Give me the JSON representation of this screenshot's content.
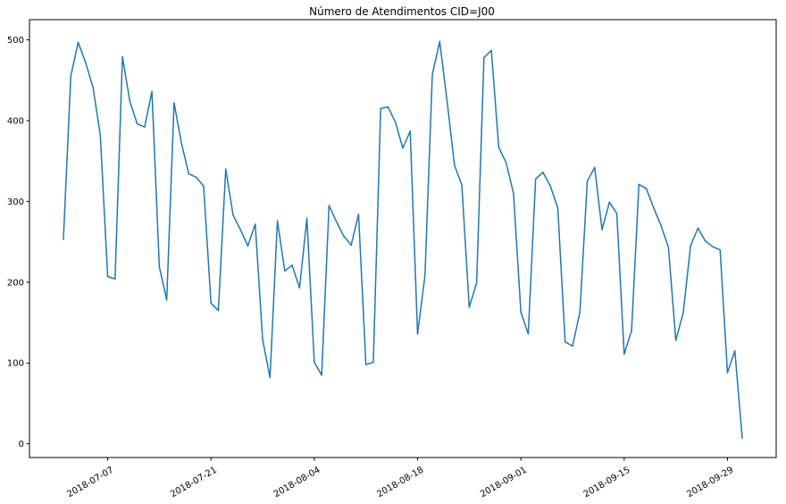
{
  "chart_data": {
    "type": "line",
    "title": "Número de Atendimentos CID=J00",
    "xlabel": "",
    "ylabel": "",
    "x_start": "2018-07-01",
    "x_step_days": 1,
    "xlim_days": [
      -4.6,
      96.6
    ],
    "ylim": [
      -17,
      525
    ],
    "yticks": [
      0,
      100,
      200,
      300,
      400,
      500
    ],
    "ytick_labels": [
      "0",
      "100",
      "200",
      "300",
      "400",
      "500"
    ],
    "xticks_days": [
      6,
      20,
      34,
      48,
      62,
      76,
      90
    ],
    "xtick_labels": [
      "2018-07-07",
      "2018-07-21",
      "2018-08-04",
      "2018-08-18",
      "2018-09-01",
      "2018-09-15",
      "2018-09-29"
    ],
    "grid": false,
    "series": [
      {
        "name": "Número de Atendimentos",
        "color": "#1f77b4",
        "values": [
          253,
          455,
          497,
          472,
          442,
          382,
          207,
          204,
          479,
          424,
          396,
          392,
          436,
          219,
          178,
          422,
          372,
          334,
          330,
          319,
          174,
          165,
          340,
          283,
          265,
          245,
          272,
          129,
          82,
          276,
          214,
          221,
          193,
          279,
          101,
          85,
          295,
          275,
          257,
          246,
          284,
          98,
          101,
          415,
          417,
          398,
          366,
          387,
          136,
          208,
          457,
          498,
          424,
          345,
          320,
          169,
          199,
          478,
          487,
          367,
          348,
          310,
          163,
          136,
          328,
          336,
          319,
          292,
          126,
          121,
          163,
          325,
          342,
          265,
          299,
          285,
          111,
          140,
          321,
          316,
          292,
          270,
          243,
          128,
          162,
          245,
          267,
          251,
          244,
          240,
          88,
          115,
          7
        ]
      }
    ]
  }
}
